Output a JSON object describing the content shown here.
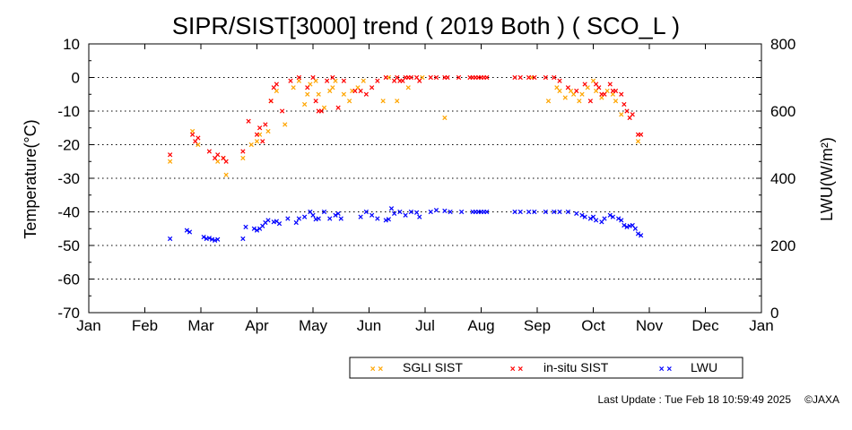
{
  "chart_data": {
    "type": "scatter",
    "title": "SIPR/SIST[3000] trend ( 2019 Both ) ( SCO_L )",
    "ylabel": "Temperature(°C)",
    "y2label": "LWU(W/m²)",
    "ylim": [
      -70,
      10
    ],
    "y2lim": [
      0,
      800
    ],
    "yticks": [
      10,
      0,
      -10,
      -20,
      -30,
      -40,
      -50,
      -60,
      -70
    ],
    "y2ticks": [
      800,
      600,
      400,
      200,
      0
    ],
    "xlim": [
      0,
      12
    ],
    "months": [
      "Jan",
      "Feb",
      "Mar",
      "Apr",
      "May",
      "Jun",
      "Jul",
      "Aug",
      "Sep",
      "Oct",
      "Nov",
      "Dec",
      "Jan"
    ],
    "grid": "horizontal dotted",
    "legend_position": "bottom-right",
    "series": [
      {
        "name": "SGLI SIST",
        "color": "#ffa500",
        "axis": "left",
        "x": [
          1.45,
          1.85,
          1.95,
          2.3,
          2.4,
          2.45,
          2.75,
          2.9,
          3.0,
          3.05,
          3.2,
          3.25,
          3.35,
          3.5,
          3.65,
          3.75,
          3.85,
          3.9,
          3.95,
          4.05,
          4.1,
          4.2,
          4.3,
          4.35,
          4.4,
          4.55,
          4.65,
          4.7,
          4.8,
          4.9,
          5.25,
          5.35,
          5.5,
          5.7,
          5.95,
          6.35,
          7.9,
          8.2,
          8.35,
          8.4,
          8.5,
          8.6,
          8.65,
          8.75,
          8.8,
          8.9,
          9.0,
          9.05,
          9.15,
          9.25,
          9.35,
          9.4,
          9.5,
          9.8
        ],
        "y": [
          -25,
          -16,
          -20,
          -25,
          -24,
          -29,
          -24,
          -20,
          -19,
          -17,
          -16,
          -7,
          -4,
          -14,
          -3,
          -1,
          -8,
          -5,
          -2,
          -1,
          -5,
          -9,
          -4,
          -3,
          -1,
          -5,
          -7,
          -4,
          -3,
          -1,
          -7,
          0,
          -7,
          -3,
          0,
          -12,
          0,
          -7,
          -3,
          -4,
          -6,
          -4,
          -5,
          -7,
          -5,
          -3,
          -1,
          -4,
          -6,
          -4,
          -5,
          -7,
          -11,
          -19
        ]
      },
      {
        "name": "in-situ SIST",
        "color": "#ff0000",
        "axis": "left",
        "x": [
          1.45,
          1.85,
          1.9,
          1.95,
          2.15,
          2.25,
          2.3,
          2.4,
          2.45,
          2.75,
          2.85,
          3.0,
          3.05,
          3.1,
          3.15,
          3.25,
          3.3,
          3.35,
          3.45,
          3.6,
          3.75,
          3.9,
          4.0,
          4.05,
          4.1,
          4.15,
          4.25,
          4.35,
          4.45,
          4.55,
          4.75,
          4.85,
          4.95,
          5.05,
          5.15,
          5.3,
          5.45,
          5.5,
          5.55,
          5.6,
          5.65,
          5.7,
          5.75,
          5.85,
          5.9,
          6.1,
          6.2,
          6.35,
          6.4,
          6.6,
          6.8,
          6.85,
          6.9,
          6.95,
          7.0,
          7.05,
          7.1,
          7.6,
          7.7,
          7.85,
          7.95,
          8.15,
          8.3,
          8.4,
          8.55,
          8.7,
          8.85,
          8.95,
          9.05,
          9.1,
          9.15,
          9.2,
          9.3,
          9.35,
          9.4,
          9.5,
          9.55,
          9.6,
          9.65,
          9.7,
          9.8,
          9.85
        ],
        "y": [
          -23,
          -17,
          -19,
          -18,
          -22,
          -24,
          -23,
          -24,
          -25,
          -22,
          -13,
          -17,
          -15,
          -19,
          -14,
          -7,
          -3,
          -2,
          -10,
          -1,
          0,
          -3,
          0,
          -7,
          -10,
          -10,
          -1,
          0,
          -9,
          -1,
          -4,
          -4,
          -5,
          -3,
          -1,
          0,
          -1,
          0,
          -1,
          -1,
          0,
          0,
          0,
          0,
          -1,
          0,
          0,
          0,
          0,
          0,
          0,
          0,
          0,
          0,
          0,
          0,
          0,
          0,
          0,
          0,
          0,
          0,
          0,
          -1,
          -3,
          -4,
          -2,
          -7,
          -2,
          -3,
          -5,
          -5,
          -2,
          -4,
          -4,
          -5,
          -8,
          -10,
          -12,
          -11,
          -17,
          -17
        ]
      },
      {
        "name": "LWU",
        "color": "#0000ff",
        "axis": "right",
        "x": [
          1.45,
          1.75,
          1.8,
          2.05,
          2.1,
          2.15,
          2.2,
          2.25,
          2.3,
          2.75,
          2.8,
          2.95,
          3.0,
          3.05,
          3.1,
          3.15,
          3.2,
          3.3,
          3.35,
          3.4,
          3.55,
          3.7,
          3.75,
          3.85,
          3.95,
          4.0,
          4.05,
          4.1,
          4.2,
          4.3,
          4.4,
          4.45,
          4.5,
          4.85,
          4.95,
          5.05,
          5.15,
          5.3,
          5.35,
          5.4,
          5.45,
          5.55,
          5.65,
          5.75,
          5.85,
          5.9,
          6.1,
          6.2,
          6.35,
          6.45,
          6.65,
          6.85,
          6.9,
          6.95,
          7.0,
          7.05,
          7.1,
          7.6,
          7.7,
          7.85,
          7.95,
          8.15,
          8.3,
          8.4,
          8.55,
          8.7,
          8.8,
          8.85,
          8.95,
          9.0,
          9.05,
          9.15,
          9.2,
          9.3,
          9.35,
          9.45,
          9.5,
          9.55,
          9.6,
          9.65,
          9.7,
          9.75,
          9.8,
          9.85
        ],
        "y": [
          220,
          245,
          240,
          225,
          220,
          222,
          218,
          215,
          218,
          220,
          255,
          250,
          245,
          250,
          258,
          268,
          275,
          270,
          272,
          265,
          280,
          268,
          280,
          285,
          300,
          290,
          278,
          280,
          300,
          280,
          290,
          295,
          280,
          285,
          300,
          290,
          280,
          275,
          278,
          310,
          295,
          300,
          290,
          300,
          298,
          285,
          300,
          305,
          303,
          300,
          300,
          300,
          300,
          300,
          300,
          300,
          300,
          300,
          300,
          300,
          300,
          300,
          300,
          300,
          300,
          295,
          290,
          285,
          280,
          285,
          275,
          270,
          280,
          290,
          285,
          280,
          275,
          260,
          255,
          258,
          260,
          250,
          235,
          230
        ]
      }
    ]
  },
  "footer": {
    "last_update": "Last Update : Tue Feb 18 10:59:49 2025",
    "copyright": "©JAXA"
  }
}
